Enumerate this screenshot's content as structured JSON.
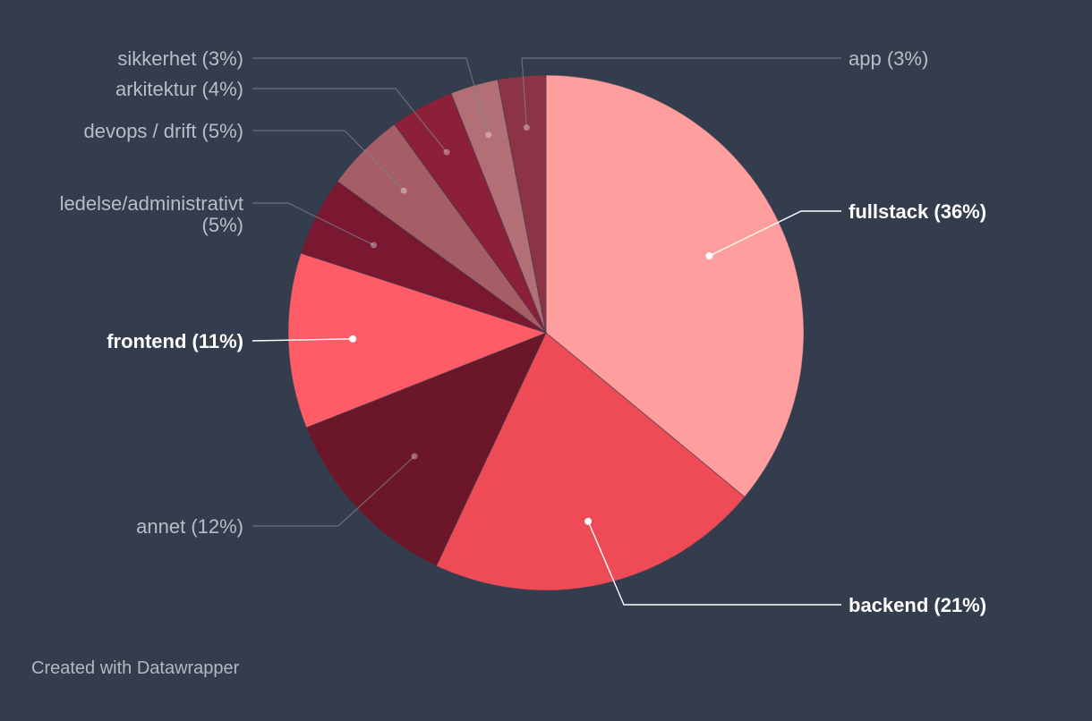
{
  "chart_data": {
    "type": "pie",
    "title": "",
    "slices": [
      {
        "label": "fullstack",
        "value": 36,
        "pct_text": "(36%)",
        "color": "#ff9e9e",
        "highlight": true
      },
      {
        "label": "backend",
        "value": 21,
        "pct_text": "(21%)",
        "color": "#ef4b56",
        "highlight": true
      },
      {
        "label": "annet",
        "value": 12,
        "pct_text": "(12%)",
        "color": "#6b1729",
        "highlight": false
      },
      {
        "label": "frontend",
        "value": 11,
        "pct_text": "(11%)",
        "color": "#ff5c67",
        "highlight": true
      },
      {
        "label": "ledelse/administrativt",
        "value": 5,
        "pct_text": "(5%)",
        "color": "#7a1832",
        "highlight": false
      },
      {
        "label": "devops / drift",
        "value": 5,
        "pct_text": "(5%)",
        "color": "#a65d66",
        "highlight": false
      },
      {
        "label": "arkitektur",
        "value": 4,
        "pct_text": "(4%)",
        "color": "#8b2038",
        "highlight": false
      },
      {
        "label": "sikkerhet",
        "value": 3,
        "pct_text": "(3%)",
        "color": "#b36f76",
        "highlight": false
      },
      {
        "label": "app",
        "value": 3,
        "pct_text": "(3%)",
        "color": "#8c3346",
        "highlight": false
      }
    ]
  },
  "footer": {
    "credit": "Created with Datawrapper"
  }
}
